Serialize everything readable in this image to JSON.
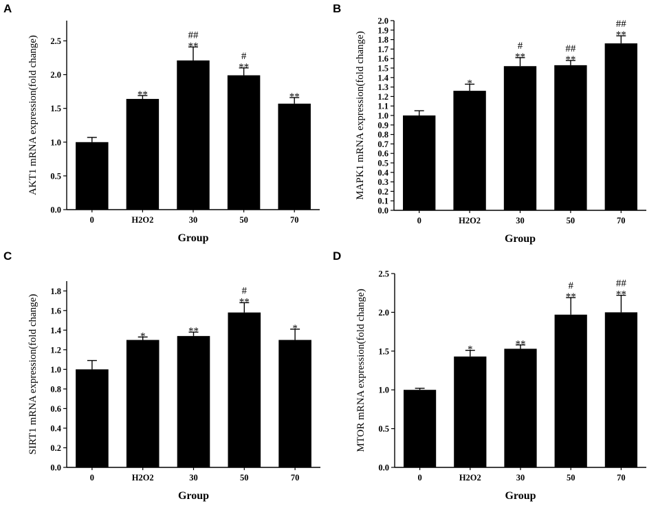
{
  "panels": [
    "A",
    "B",
    "C",
    "D"
  ],
  "chart_data": [
    {
      "type": "bar",
      "panel": "A",
      "xlabel": "Group",
      "ylabel": "AKT1 mRNA expression(fold change)",
      "categories": [
        "0",
        "H2O2",
        "30",
        "50",
        "70"
      ],
      "values": [
        1.0,
        1.64,
        2.21,
        1.99,
        1.57
      ],
      "errors": [
        0.07,
        0.05,
        0.2,
        0.11,
        0.09
      ],
      "annotations": [
        "",
        "**",
        "**",
        "**",
        "**"
      ],
      "annotations2": [
        "",
        "",
        "##",
        "#",
        ""
      ],
      "ylim": [
        0,
        2.8
      ],
      "yticks": [
        0.0,
        0.5,
        1.0,
        1.5,
        2.0,
        2.5
      ],
      "ytick_labels": [
        "0.0",
        "0.5",
        "1.0",
        "1.5",
        "2.0",
        "2.5"
      ]
    },
    {
      "type": "bar",
      "panel": "B",
      "xlabel": "Group",
      "ylabel": "MAPK1 mRNA expression(fold change)",
      "categories": [
        "0",
        "H2O2",
        "30",
        "50",
        "70"
      ],
      "values": [
        1.0,
        1.26,
        1.52,
        1.53,
        1.76
      ],
      "errors": [
        0.05,
        0.07,
        0.09,
        0.05,
        0.08
      ],
      "annotations": [
        "",
        "*",
        "**",
        "**",
        "**"
      ],
      "annotations2": [
        "",
        "",
        "#",
        "##",
        "##"
      ],
      "ylim": [
        0,
        2.0
      ],
      "yticks": [
        0.0,
        0.1,
        0.2,
        0.3,
        0.4,
        0.5,
        0.6,
        0.7,
        0.8,
        0.9,
        1.0,
        1.1,
        1.2,
        1.3,
        1.4,
        1.5,
        1.6,
        1.7,
        1.8,
        1.9,
        2.0
      ],
      "ytick_labels": [
        "0.0",
        "0.1",
        "0.2",
        "0.3",
        "0.4",
        "0.5",
        "0.6",
        "0.7",
        "0.8",
        "0.9",
        "1.0",
        "1.1",
        "1.2",
        "1.3",
        "1.4",
        "1.5",
        "1.6",
        "1.7",
        "1.8",
        "1.9",
        "2.0"
      ]
    },
    {
      "type": "bar",
      "panel": "C",
      "xlabel": "Group",
      "ylabel": "SIRT1 mRNA expression(fold change)",
      "categories": [
        "0",
        "H2O2",
        "30",
        "50",
        "70"
      ],
      "values": [
        1.0,
        1.3,
        1.34,
        1.58,
        1.3
      ],
      "errors": [
        0.09,
        0.03,
        0.04,
        0.1,
        0.11
      ],
      "annotations": [
        "",
        "*",
        "**",
        "**",
        "*"
      ],
      "annotations2": [
        "",
        "",
        "",
        "#",
        ""
      ],
      "ylim": [
        0,
        1.9
      ],
      "yticks": [
        0.0,
        0.2,
        0.4,
        0.6,
        0.8,
        1.0,
        1.2,
        1.4,
        1.6,
        1.8
      ],
      "ytick_labels": [
        "0.0",
        "0.2",
        "0.4",
        "0.6",
        "0.8",
        "1.0",
        "1.2",
        "1.4",
        "1.6",
        "1.8"
      ]
    },
    {
      "type": "bar",
      "panel": "D",
      "xlabel": "Group",
      "ylabel": "MTOR mRNA expression(fold change)",
      "categories": [
        "0",
        "H2O2",
        "30",
        "50",
        "70"
      ],
      "values": [
        1.0,
        1.43,
        1.53,
        1.97,
        2.0
      ],
      "errors": [
        0.02,
        0.08,
        0.05,
        0.22,
        0.22
      ],
      "annotations": [
        "",
        "*",
        "**",
        "**",
        "**"
      ],
      "annotations2": [
        "",
        "",
        "",
        "#",
        "##"
      ],
      "ylim": [
        0,
        2.5
      ],
      "yticks": [
        0.0,
        0.5,
        1.0,
        1.5,
        2.0,
        2.5
      ],
      "ytick_labels": [
        "0.0",
        "0.5",
        "1.0",
        "1.5",
        "2.0",
        "2.5"
      ]
    }
  ]
}
